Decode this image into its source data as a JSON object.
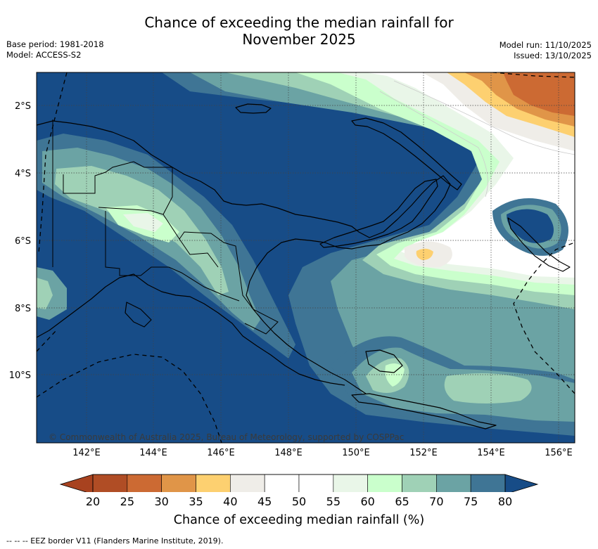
{
  "title": {
    "line1": "Chance of exceeding the median rainfall for",
    "line2": "November 2025"
  },
  "meta_left": {
    "base_period": "Base period: 1981-2018",
    "model": "Model: ACCESS-S2"
  },
  "meta_right": {
    "model_run": "Model run: 11/10/2025",
    "issued": "Issued: 13/10/2025"
  },
  "map": {
    "lat_labels": [
      "2°S",
      "4°S",
      "6°S",
      "8°S",
      "10°S"
    ],
    "lon_labels": [
      "142°E",
      "144°E",
      "146°E",
      "148°E",
      "150°E",
      "152°E",
      "154°E",
      "156°E"
    ],
    "attribution": "© Commonwealth of Australia 2025, Bureau of Meteorology, supported by COSPPac"
  },
  "colorbar": {
    "ticks": [
      "20",
      "25",
      "30",
      "35",
      "40",
      "45",
      "50",
      "55",
      "60",
      "65",
      "70",
      "75",
      "80"
    ],
    "colors": [
      "#b04d25",
      "#cc6a33",
      "#e09548",
      "#fdd070",
      "#efede8",
      "#ffffff",
      "#ffffff",
      "#e9f6e8",
      "#caffcc",
      "#9fd1b6",
      "#6ba3a4",
      "#3f7595"
    ],
    "under_color": "#a8421f",
    "over_color": "#174c87",
    "label": "Chance of exceeding median rainfall (%)"
  },
  "legend": {
    "eez": "-- -- -- EEZ border V11 (Flanders Marine Institute, 2019)."
  },
  "colors": {
    "c80": "#174c87",
    "c75": "#3f7595",
    "c70": "#6ba3a4",
    "c65": "#9fd1b6",
    "c60": "#caffcc",
    "c55": "#e9f6e8",
    "c50": "#ffffff",
    "c40": "#efede8",
    "c35": "#fdd070",
    "c30": "#e09548",
    "c25": "#cc6a33",
    "c20": "#b04d25"
  }
}
